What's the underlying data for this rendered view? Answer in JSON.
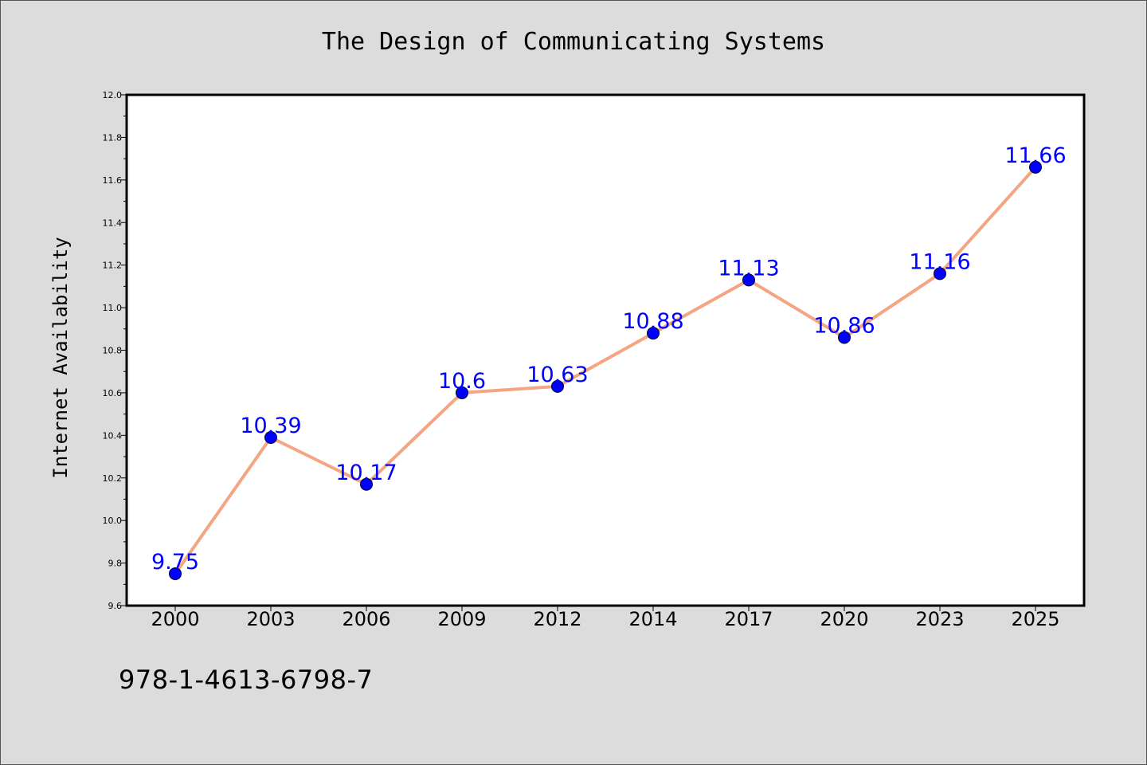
{
  "chart_data": {
    "type": "line",
    "title": "The Design of Communicating Systems",
    "xlabel": "",
    "ylabel": "Internet Availability",
    "categories": [
      "2000",
      "2003",
      "2006",
      "2009",
      "2012",
      "2014",
      "2017",
      "2020",
      "2023",
      "2025"
    ],
    "series": [
      {
        "values": [
          9.75,
          10.39,
          10.17,
          10.6,
          10.63,
          10.88,
          11.13,
          10.86,
          11.16,
          11.66
        ],
        "data_labels": [
          "9.75",
          "10.39",
          "10.17",
          "10.6",
          "10.63",
          "10.88",
          "11.13",
          "10.86",
          "11.16",
          "11.66"
        ],
        "line_color": "#f4a582",
        "marker_color": "#0000ff",
        "label_color": "#0000ff"
      }
    ],
    "ylim": [
      9.6,
      12.0
    ],
    "yticks": [
      "9.6",
      "9.8",
      "10.0",
      "10.2",
      "10.4",
      "10.6",
      "10.8",
      "11.0",
      "11.2",
      "11.4",
      "11.6",
      "11.8",
      "12.0"
    ],
    "grid": false,
    "legend": "none",
    "plot_background": "#ffffff",
    "page_background": "#dcdcdc"
  },
  "footer": {
    "isbn": "978-1-4613-6798-7"
  }
}
